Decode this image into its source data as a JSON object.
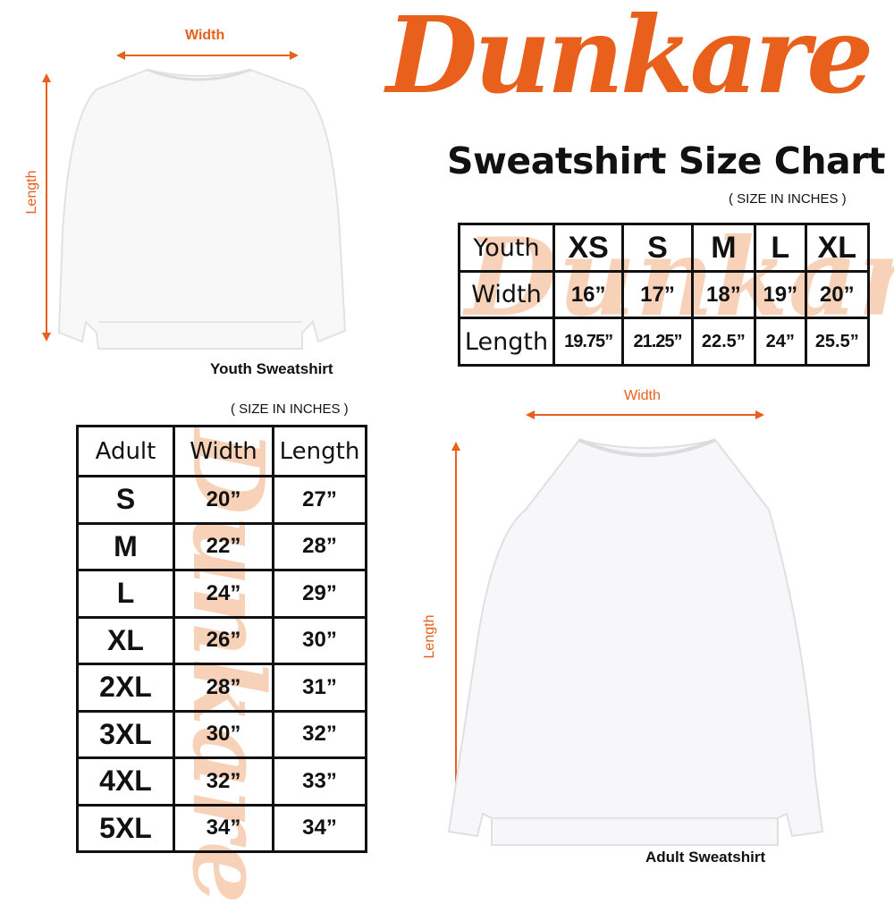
{
  "brand": {
    "logo": "Dunkare",
    "color": "#e8601c"
  },
  "title": "Sweatshirt Size Chart",
  "youth": {
    "caption": "Youth Sweatshirt",
    "width_label": "Width",
    "length_label": "Length",
    "unit_note": "( SIZE IN INCHES )",
    "table": {
      "header": [
        "Youth",
        "XS",
        "S",
        "M",
        "L",
        "XL"
      ],
      "rows": [
        [
          "Width",
          "16”",
          "17”",
          "18”",
          "19”",
          "20”"
        ],
        [
          "Length",
          "19.75”",
          "21.25”",
          "22.5”",
          "24”",
          "25.5”"
        ]
      ]
    }
  },
  "adult": {
    "caption": "Adult Sweatshirt",
    "width_label": "Width",
    "length_label": "Length",
    "unit_note": "( SIZE IN INCHES )",
    "table": {
      "header": [
        "Adult",
        "Width",
        "Length"
      ],
      "rows": [
        [
          "S",
          "20”",
          "27”"
        ],
        [
          "M",
          "22”",
          "28”"
        ],
        [
          "L",
          "24”",
          "29”"
        ],
        [
          "XL",
          "26”",
          "30”"
        ],
        [
          "2XL",
          "28”",
          "31”"
        ],
        [
          "3XL",
          "30”",
          "32”"
        ],
        [
          "4XL",
          "32”",
          "33”"
        ],
        [
          "5XL",
          "34”",
          "34”"
        ]
      ]
    }
  }
}
